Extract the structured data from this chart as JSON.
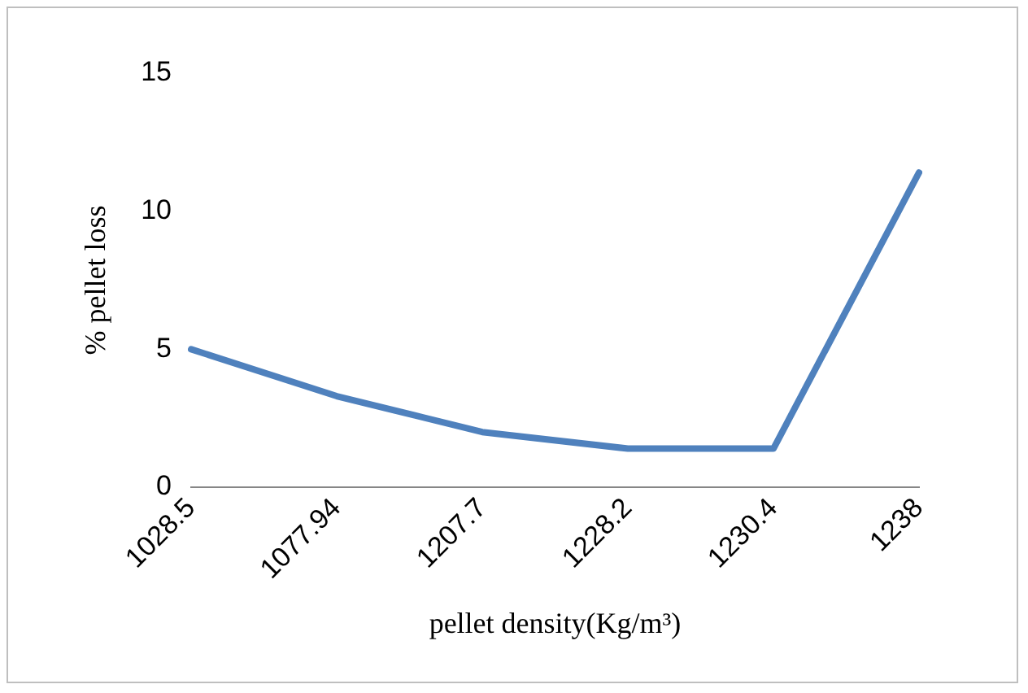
{
  "chart_data": {
    "type": "line",
    "xlabel": "pellet density(Kg/m³)",
    "ylabel": "% pellet loss",
    "categories": [
      "1028.5",
      "1077.94",
      "1207.7",
      "1228.2",
      "1230.4",
      "1238"
    ],
    "series": [
      {
        "color": "#4f81bd",
        "values": [
          5.0,
          3.3,
          2.0,
          1.4,
          1.4,
          11.4
        ]
      }
    ],
    "ylim": [
      0,
      15
    ],
    "yticks": [
      0,
      5,
      10,
      15
    ],
    "grid": false,
    "legend": false,
    "marker": "none",
    "line_style": "solid"
  }
}
